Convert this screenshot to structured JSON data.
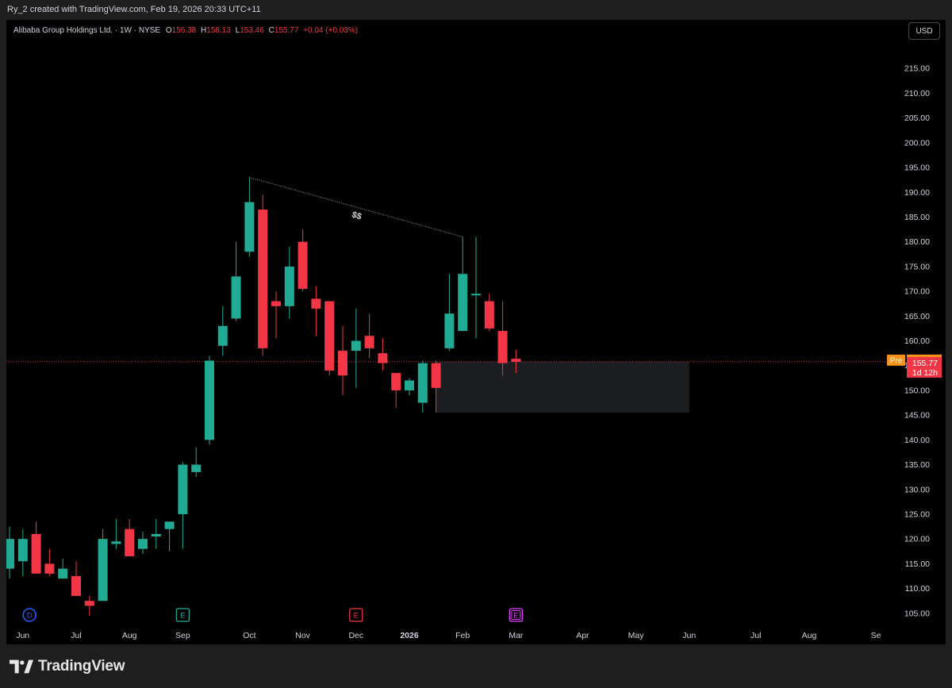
{
  "header": {
    "attribution": "Ry_2 created with TradingView.com, Feb 19, 2026 20:33 UTC+11"
  },
  "legend": {
    "symbol": "Alibaba Group Holdings Ltd. · 1W · NYSE",
    "o_label": "O",
    "o_value": "156.38",
    "h_label": "H",
    "h_value": "158.13",
    "l_label": "L",
    "l_value": "153.46",
    "c_label": "C",
    "c_value": "155.77",
    "change": "+0.04 (+0.03%)"
  },
  "currency_button": "USD",
  "brand": {
    "name": "TradingView",
    "logo_icon": "tradingview-logo-icon"
  },
  "colors": {
    "up": "#22ab94",
    "down": "#f23645",
    "background": "#000000",
    "axis_text": "#d1d4dc",
    "premarket": "#f7931a",
    "zone": "#1c1d20"
  },
  "chart_data": {
    "type": "candlestick",
    "interval": "1W",
    "y_axis_ticks": [
      "105.00",
      "110.00",
      "115.00",
      "120.00",
      "125.00",
      "130.00",
      "135.00",
      "140.00",
      "145.00",
      "150.00",
      "155.00",
      "160.00",
      "165.00",
      "170.00",
      "175.00",
      "180.00",
      "185.00",
      "190.00",
      "195.00",
      "200.00",
      "205.00",
      "210.00",
      "215.00"
    ],
    "ylim": [
      103.5,
      221
    ],
    "x_axis_labels": [
      "Jun",
      "Jul",
      "Aug",
      "Sep",
      "Oct",
      "Nov",
      "Dec",
      "2026",
      "Feb",
      "Mar",
      "Apr",
      "May",
      "Jun",
      "Jul",
      "Aug",
      "Se"
    ],
    "x_axis_label_weeks": [
      1,
      5,
      9,
      13,
      18,
      22,
      26,
      30,
      34,
      38,
      43,
      47,
      51,
      56,
      60,
      65
    ],
    "candles": [
      {
        "w": 0,
        "o": 114.0,
        "h": 122.5,
        "l": 112.0,
        "c": 120.0
      },
      {
        "w": 1,
        "o": 115.5,
        "h": 122.0,
        "l": 112.5,
        "c": 120.0
      },
      {
        "w": 2,
        "o": 121.0,
        "h": 123.5,
        "l": 113.0,
        "c": 113.0
      },
      {
        "w": 3,
        "o": 115.0,
        "h": 118.0,
        "l": 112.5,
        "c": 113.0
      },
      {
        "w": 4,
        "o": 112.0,
        "h": 116.0,
        "l": 112.0,
        "c": 114.0
      },
      {
        "w": 5,
        "o": 112.5,
        "h": 115.5,
        "l": 108.5,
        "c": 108.5
      },
      {
        "w": 6,
        "o": 107.5,
        "h": 108.5,
        "l": 104.5,
        "c": 106.5
      },
      {
        "w": 7,
        "o": 107.5,
        "h": 122.0,
        "l": 107.5,
        "c": 120.0
      },
      {
        "w": 8,
        "o": 119.0,
        "h": 124.0,
        "l": 118.0,
        "c": 119.5
      },
      {
        "w": 9,
        "o": 122.0,
        "h": 124.0,
        "l": 116.5,
        "c": 116.5
      },
      {
        "w": 10,
        "o": 118.0,
        "h": 121.5,
        "l": 117.0,
        "c": 120.0
      },
      {
        "w": 11,
        "o": 120.5,
        "h": 124.0,
        "l": 118.0,
        "c": 121.0
      },
      {
        "w": 12,
        "o": 122.0,
        "h": 123.5,
        "l": 117.5,
        "c": 123.5
      },
      {
        "w": 13,
        "o": 125.0,
        "h": 135.5,
        "l": 118.0,
        "c": 135.0
      },
      {
        "w": 14,
        "o": 133.5,
        "h": 138.5,
        "l": 132.5,
        "c": 135.0
      },
      {
        "w": 15,
        "o": 140.0,
        "h": 157.0,
        "l": 139.0,
        "c": 156.0
      },
      {
        "w": 16,
        "o": 159.0,
        "h": 167.0,
        "l": 157.0,
        "c": 163.0
      },
      {
        "w": 17,
        "o": 164.5,
        "h": 180.0,
        "l": 164.0,
        "c": 173.0
      },
      {
        "w": 18,
        "o": 178.0,
        "h": 193.0,
        "l": 177.0,
        "c": 188.0
      },
      {
        "w": 19,
        "o": 186.5,
        "h": 189.5,
        "l": 157.0,
        "c": 158.5
      },
      {
        "w": 20,
        "o": 168.0,
        "h": 170.0,
        "l": 160.5,
        "c": 167.0
      },
      {
        "w": 21,
        "o": 167.0,
        "h": 179.0,
        "l": 164.5,
        "c": 175.0
      },
      {
        "w": 22,
        "o": 180.0,
        "h": 182.5,
        "l": 170.0,
        "c": 170.5
      },
      {
        "w": 23,
        "o": 168.5,
        "h": 171.0,
        "l": 161.0,
        "c": 166.5
      },
      {
        "w": 24,
        "o": 168.0,
        "h": 168.0,
        "l": 153.0,
        "c": 154.0
      },
      {
        "w": 25,
        "o": 158.0,
        "h": 163.0,
        "l": 149.0,
        "c": 153.0
      },
      {
        "w": 26,
        "o": 158.0,
        "h": 166.5,
        "l": 150.5,
        "c": 160.0
      },
      {
        "w": 27,
        "o": 161.0,
        "h": 165.5,
        "l": 156.5,
        "c": 158.5
      },
      {
        "w": 28,
        "o": 157.5,
        "h": 160.5,
        "l": 154.0,
        "c": 155.5
      },
      {
        "w": 29,
        "o": 153.5,
        "h": 153.5,
        "l": 146.5,
        "c": 150.0
      },
      {
        "w": 30,
        "o": 150.0,
        "h": 152.5,
        "l": 149.0,
        "c": 152.0
      },
      {
        "w": 31,
        "o": 147.5,
        "h": 156.0,
        "l": 145.5,
        "c": 155.5
      },
      {
        "w": 32,
        "o": 155.5,
        "h": 156.0,
        "l": 145.5,
        "c": 150.5
      },
      {
        "w": 33,
        "o": 158.5,
        "h": 173.5,
        "l": 158.0,
        "c": 165.5
      },
      {
        "w": 34,
        "o": 162.0,
        "h": 181.0,
        "l": 162.0,
        "c": 173.5
      },
      {
        "w": 35,
        "o": 169.5,
        "h": 181.0,
        "l": 160.5,
        "c": 169.5
      },
      {
        "w": 36,
        "o": 168.0,
        "h": 169.5,
        "l": 162.0,
        "c": 162.5
      },
      {
        "w": 37,
        "o": 162.0,
        "h": 168.0,
        "l": 153.0,
        "c": 155.5
      },
      {
        "w": 38,
        "o": 156.38,
        "h": 158.13,
        "l": 153.46,
        "c": 155.77
      }
    ],
    "annotations": {
      "liquidity_line": {
        "from": {
          "w": 18,
          "price": 193.0
        },
        "to": {
          "w": 34,
          "price": 181.0
        },
        "label": "$$"
      },
      "zone": {
        "from_week": 32,
        "to_week": 51,
        "top": 155.77,
        "bottom": 145.5
      },
      "last_price_line": 155.77
    },
    "price_labels": {
      "premarket_tag": "Pre",
      "premarket_price": "156.10",
      "premarket_value": 156.1,
      "last_price": "155.77",
      "last_value": 155.77,
      "countdown": "1d 12h"
    },
    "event_markers": [
      {
        "w": 1.5,
        "letter": "D",
        "color": "#2962ff"
      },
      {
        "w": 13,
        "letter": "E",
        "color": "#22ab94"
      },
      {
        "w": 26,
        "letter": "E",
        "color": "#f23645"
      },
      {
        "w": 38,
        "letter": "E",
        "color": "#e040fb",
        "outlined": true
      }
    ]
  }
}
